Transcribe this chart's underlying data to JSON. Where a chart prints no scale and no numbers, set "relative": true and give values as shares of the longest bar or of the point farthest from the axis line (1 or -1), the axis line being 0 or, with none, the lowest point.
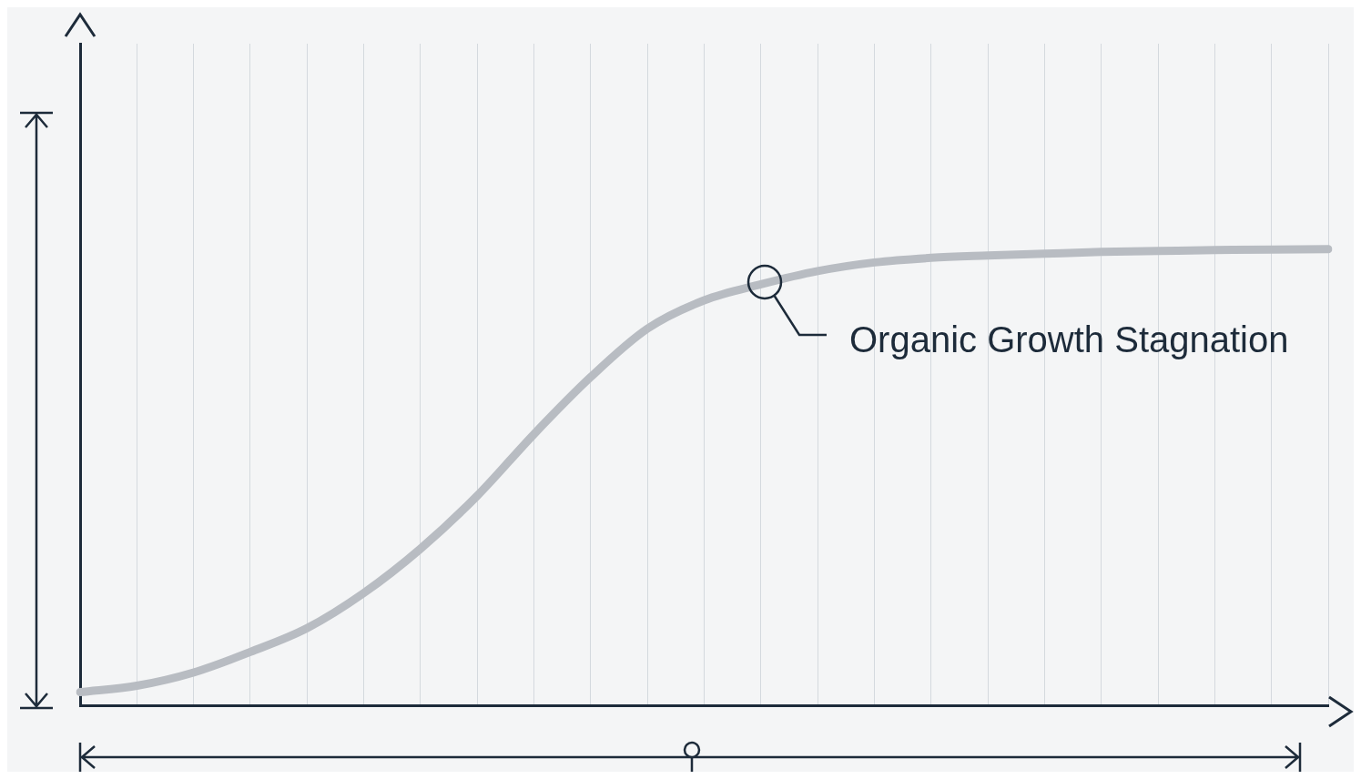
{
  "chart_data": {
    "type": "line",
    "relative": true,
    "categories": [
      null,
      null,
      null,
      null,
      null,
      null,
      null,
      null,
      null,
      null,
      null,
      null,
      null,
      null,
      null,
      null,
      null,
      null,
      null,
      null,
      null,
      null,
      null
    ],
    "series": [
      {
        "color": "#b8bcc2",
        "values": [
          0.03,
          0.044,
          0.073,
          0.118,
          0.17,
          0.247,
          0.344,
          0.46,
          0.595,
          0.72,
          0.826,
          0.888,
          0.923,
          0.952,
          0.971,
          0.981,
          0.986,
          0.99,
          0.994,
          0.996,
          0.998,
          0.999,
          1
        ]
      }
    ],
    "annotations": [
      "Organic Growth Stagnation"
    ],
    "grid": "x",
    "marker": "none",
    "line_style": "solid",
    "legend": false
  }
}
